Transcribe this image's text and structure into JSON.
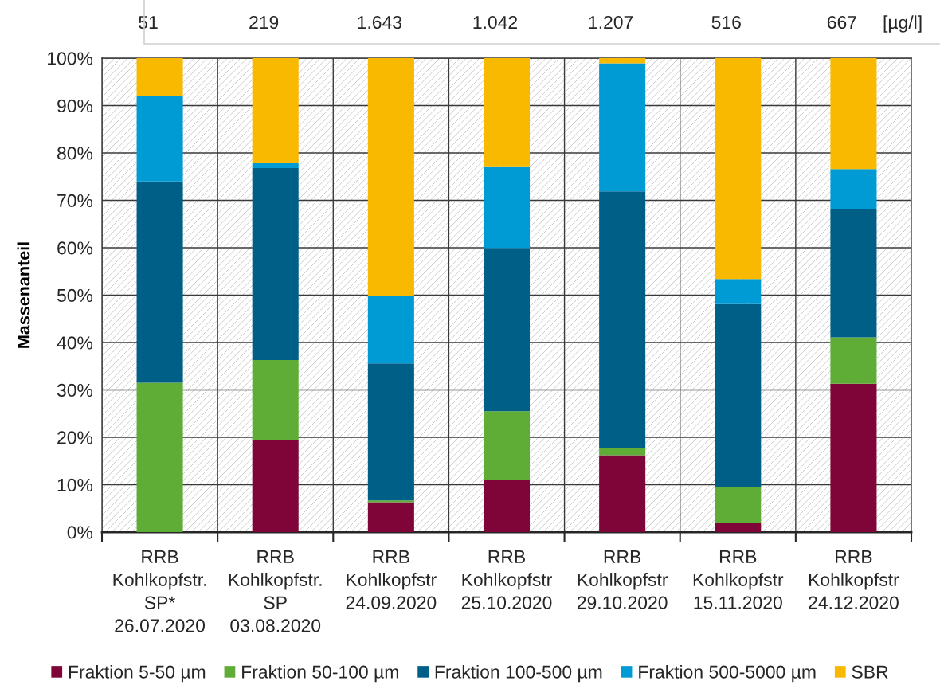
{
  "chart_data": {
    "type": "bar",
    "stacked": true,
    "categories": [
      "RRB\nKohlkopfstr.\nSP*\n26.07.2020",
      "RRB\nKohlkopfstr.\nSP\n03.08.2020",
      "RRB\nKohlkopfstr\n24.09.2020",
      "RRB\nKohlkopfstr\n25.10.2020",
      "RRB\nKohlkopfstr\n29.10.2020",
      "RRB\nKohlkopfstr\n15.11.2020",
      "RRB\nKohlkopfstr\n24.12.2020"
    ],
    "series": [
      {
        "name": "Fraktion 5-50 µm",
        "color": "#7f0539",
        "values": [
          null,
          19.4,
          6.3,
          11.1,
          16.2,
          2.0,
          31.3
        ]
      },
      {
        "name": "Fraktion 50-100 µm",
        "color": "#5fad36",
        "values": [
          31.5,
          16.9,
          0.4,
          14.4,
          1.5,
          7.4,
          9.8
        ]
      },
      {
        "name": "Fraktion 100-500 µm",
        "color": "#005f87",
        "values": [
          42.5,
          40.5,
          28.9,
          34.4,
          54.2,
          38.7,
          27.1
        ]
      },
      {
        "name": "Fraktion 500-5000 µm",
        "color": "#009bd4",
        "values": [
          18.1,
          1.0,
          14.2,
          17.1,
          27.0,
          5.3,
          8.4
        ]
      },
      {
        "name": "SBR",
        "color": "#f9b900",
        "values": [
          7.9,
          22.2,
          50.2,
          23.0,
          1.1,
          46.6,
          23.4
        ]
      }
    ],
    "ylabel": "Massenanteil",
    "ylim": [
      0,
      100
    ],
    "yticks": [
      {
        "value": 0,
        "label": "0%"
      },
      {
        "value": 10,
        "label": "10%"
      },
      {
        "value": 20,
        "label": "20%"
      },
      {
        "value": 30,
        "label": "30%"
      },
      {
        "value": 40,
        "label": "40%"
      },
      {
        "value": 50,
        "label": "50%"
      },
      {
        "value": 60,
        "label": "60%"
      },
      {
        "value": 70,
        "label": "70%"
      },
      {
        "value": 80,
        "label": "80%"
      },
      {
        "value": 90,
        "label": "90%"
      },
      {
        "value": 100,
        "label": "100%"
      }
    ],
    "grid": true,
    "legend": "bottom",
    "annotations": [
      "51",
      "219",
      "1.643",
      "1.042",
      "1.207",
      "516",
      "667",
      "[µg/l]"
    ]
  }
}
